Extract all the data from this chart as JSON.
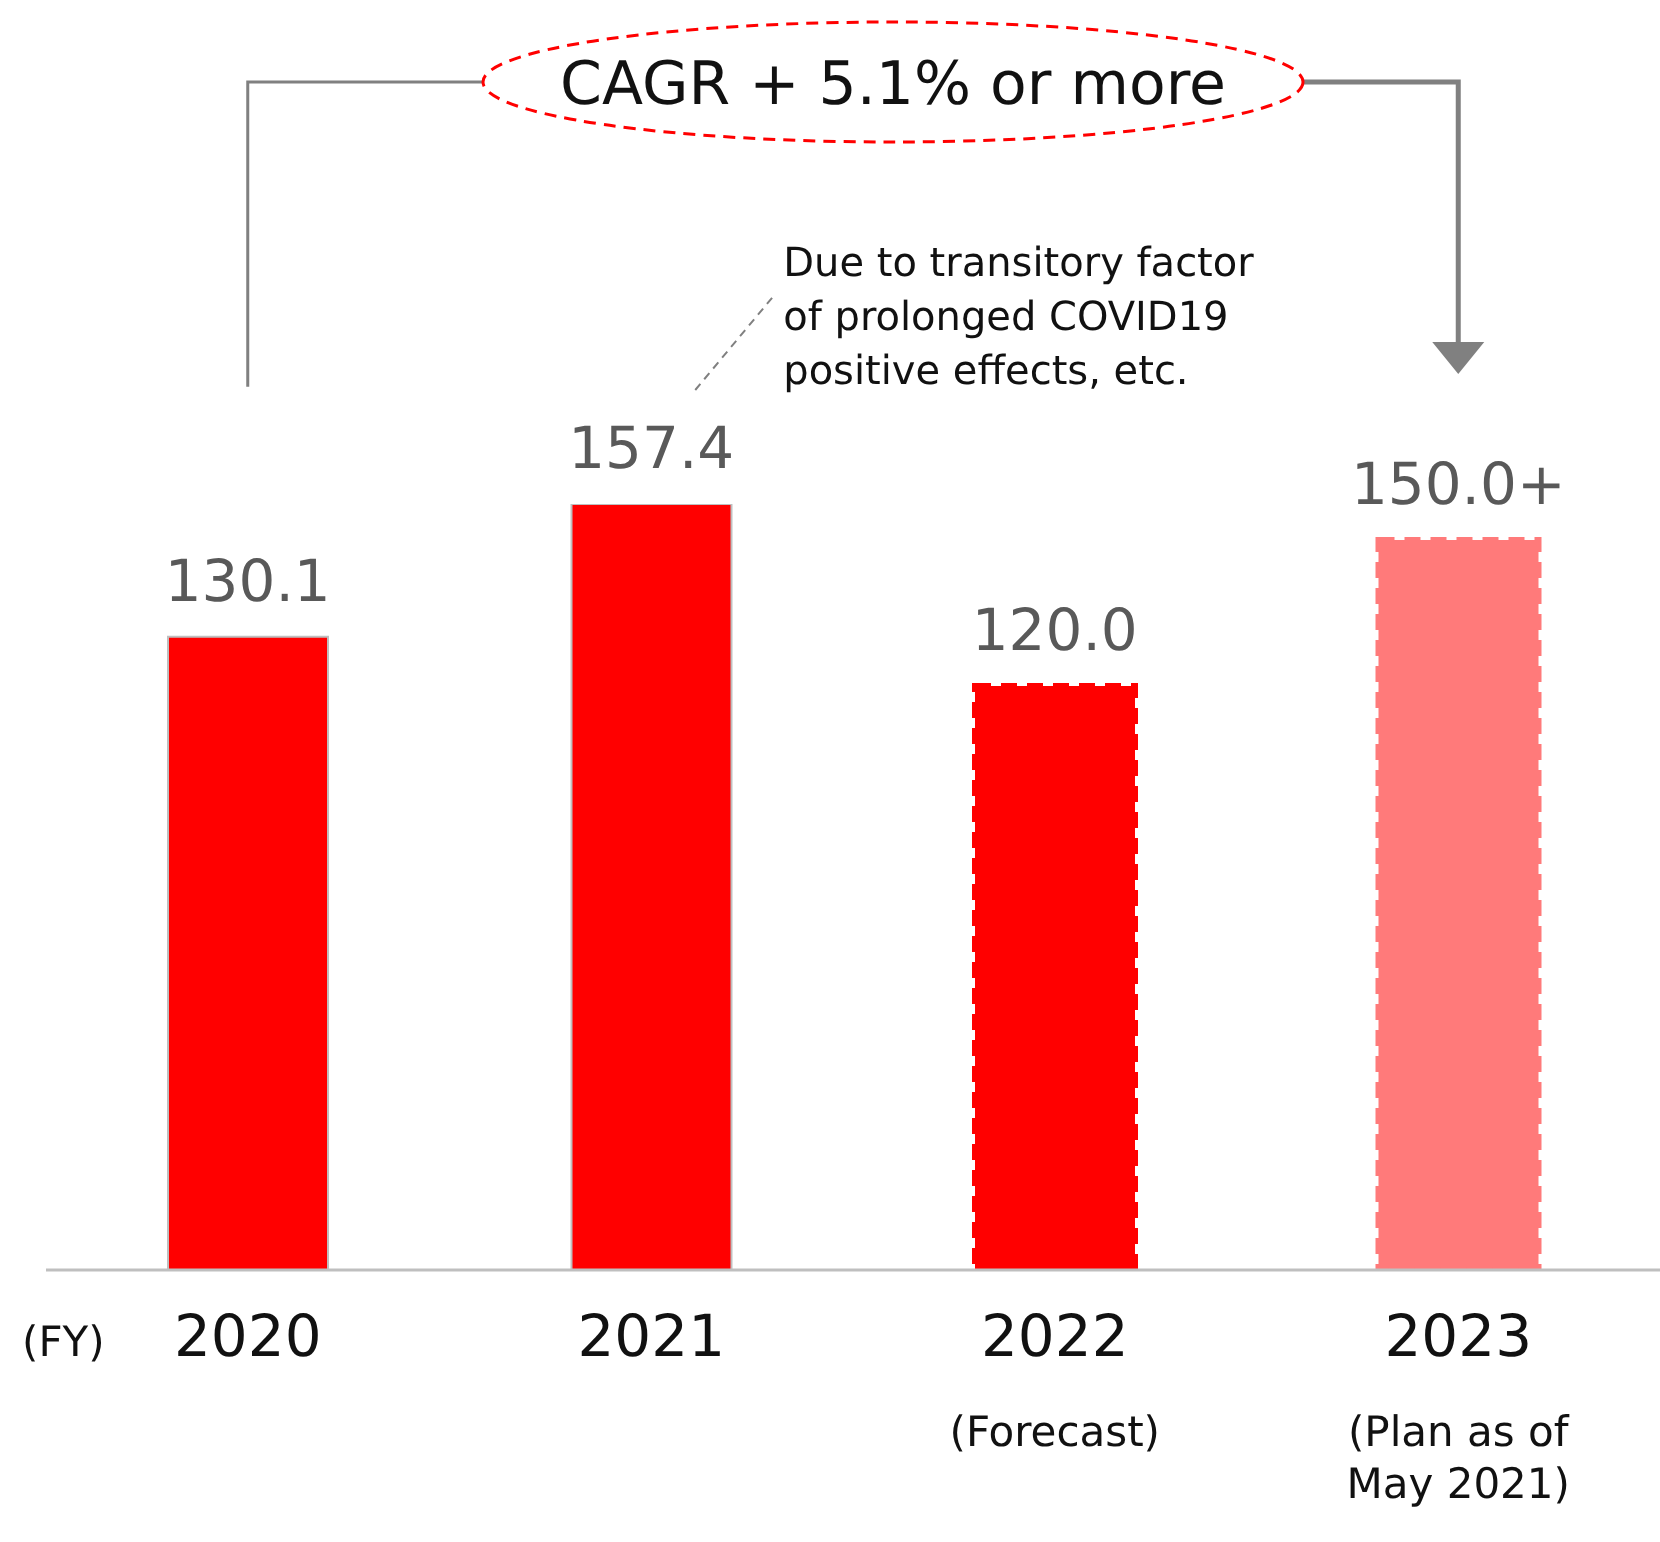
{
  "chart_data": {
    "type": "bar",
    "xlabel": "(FY)",
    "categories": [
      "2020",
      "2021",
      "2022\n(Forecast)",
      "2023\n(Plan as of\nMay 2021)"
    ],
    "stacked": true,
    "tick_labels": "x",
    "series": [
      {
        "color": "#ff0000",
        "values": [
          130.1,
          157.4,
          null,
          null
        ],
        "value_labels": [
          "130.1",
          "157.4",
          null,
          null
        ]
      },
      {
        "color": "#ff0000",
        "line_style": "dashed",
        "values": [
          null,
          null,
          120.0,
          null
        ],
        "value_labels": [
          null,
          null,
          "120.0",
          null
        ]
      },
      {
        "color": "#ff7a7a",
        "line_style": "dashed",
        "values": [
          null,
          null,
          null,
          150.0
        ],
        "value_labels": [
          null,
          null,
          null,
          "150.0+"
        ]
      }
    ],
    "annotations": [
      "CAGR + 5.1% or more",
      "Due to transitory factor\nof prolonged COVID19\npositive effects, etc."
    ]
  }
}
